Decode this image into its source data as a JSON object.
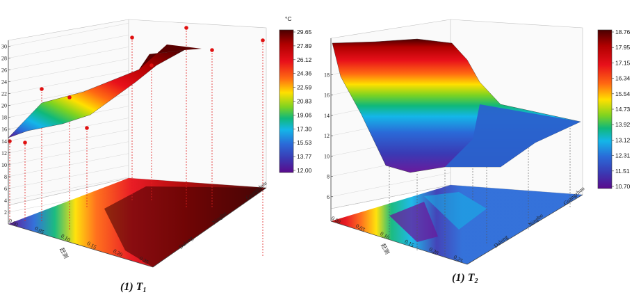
{
  "chart_data": [
    {
      "type": "surface3d",
      "caption": "(1) T",
      "caption_sub": "1",
      "unit_label": "°C",
      "z_ticks": [
        "2",
        "4",
        "6",
        "8",
        "10",
        "12",
        "14",
        "16",
        "18",
        "20",
        "22",
        "24",
        "26",
        "28",
        "30"
      ],
      "x_ticks": [
        "0.00",
        "0.05",
        "0.10",
        "0.15",
        "0.20",
        "0.25"
      ],
      "x_axis_label": "赶测",
      "y_ticks": [
        "Dalong",
        "Ningbo",
        "Guangzhou"
      ],
      "colorbar_ticks": [
        "29.65",
        "27.89",
        "26.12",
        "24.36",
        "22.59",
        "20.83",
        "19.06",
        "17.30",
        "15.53",
        "13.77",
        "12.00"
      ],
      "zlim": [
        0,
        30
      ],
      "crange": [
        12.0,
        29.65
      ],
      "surface": [
        [
          12,
          20,
          21,
          24,
          27,
          29
        ],
        [
          13,
          19,
          22,
          25,
          28,
          29.5
        ],
        [
          13,
          18,
          21,
          24,
          28,
          29.6
        ]
      ],
      "points": [
        [
          0,
          0,
          12.5
        ],
        [
          0,
          0.15,
          21.5
        ],
        [
          0,
          0.05,
          19.3
        ],
        [
          0.1,
          0.6,
          17.5
        ],
        [
          0.15,
          1,
          25.5
        ],
        [
          0.2,
          1.2,
          28.7
        ],
        [
          0.25,
          1.6,
          29.2
        ],
        [
          0.25,
          2,
          28.8
        ]
      ]
    },
    {
      "type": "surface3d",
      "caption": "(1) T",
      "caption_sub": "2",
      "z_ticks": [
        "6",
        "8",
        "10",
        "12",
        "14",
        "16",
        "18"
      ],
      "x_ticks": [
        "0.00",
        "0.05",
        "0.10",
        "0.15",
        "0.20",
        "0.25"
      ],
      "x_axis_label": "赶测",
      "y_ticks": [
        "Dalong",
        "Ningbo",
        "Guangzhou"
      ],
      "colorbar_ticks": [
        "18.76",
        "17.95",
        "17.15",
        "16.34",
        "15.54",
        "14.73",
        "13.92",
        "13.12",
        "12.31",
        "11.51",
        "10.70"
      ],
      "zlim": [
        5,
        19
      ],
      "crange": [
        10.7,
        18.76
      ],
      "surface": [
        [
          18.5,
          16,
          14,
          12.5,
          11.5,
          11
        ],
        [
          18.7,
          16.5,
          14.5,
          13,
          12.3,
          12.3
        ],
        [
          18,
          15.5,
          13.5,
          12.5,
          12.2,
          12.3
        ]
      ]
    }
  ]
}
